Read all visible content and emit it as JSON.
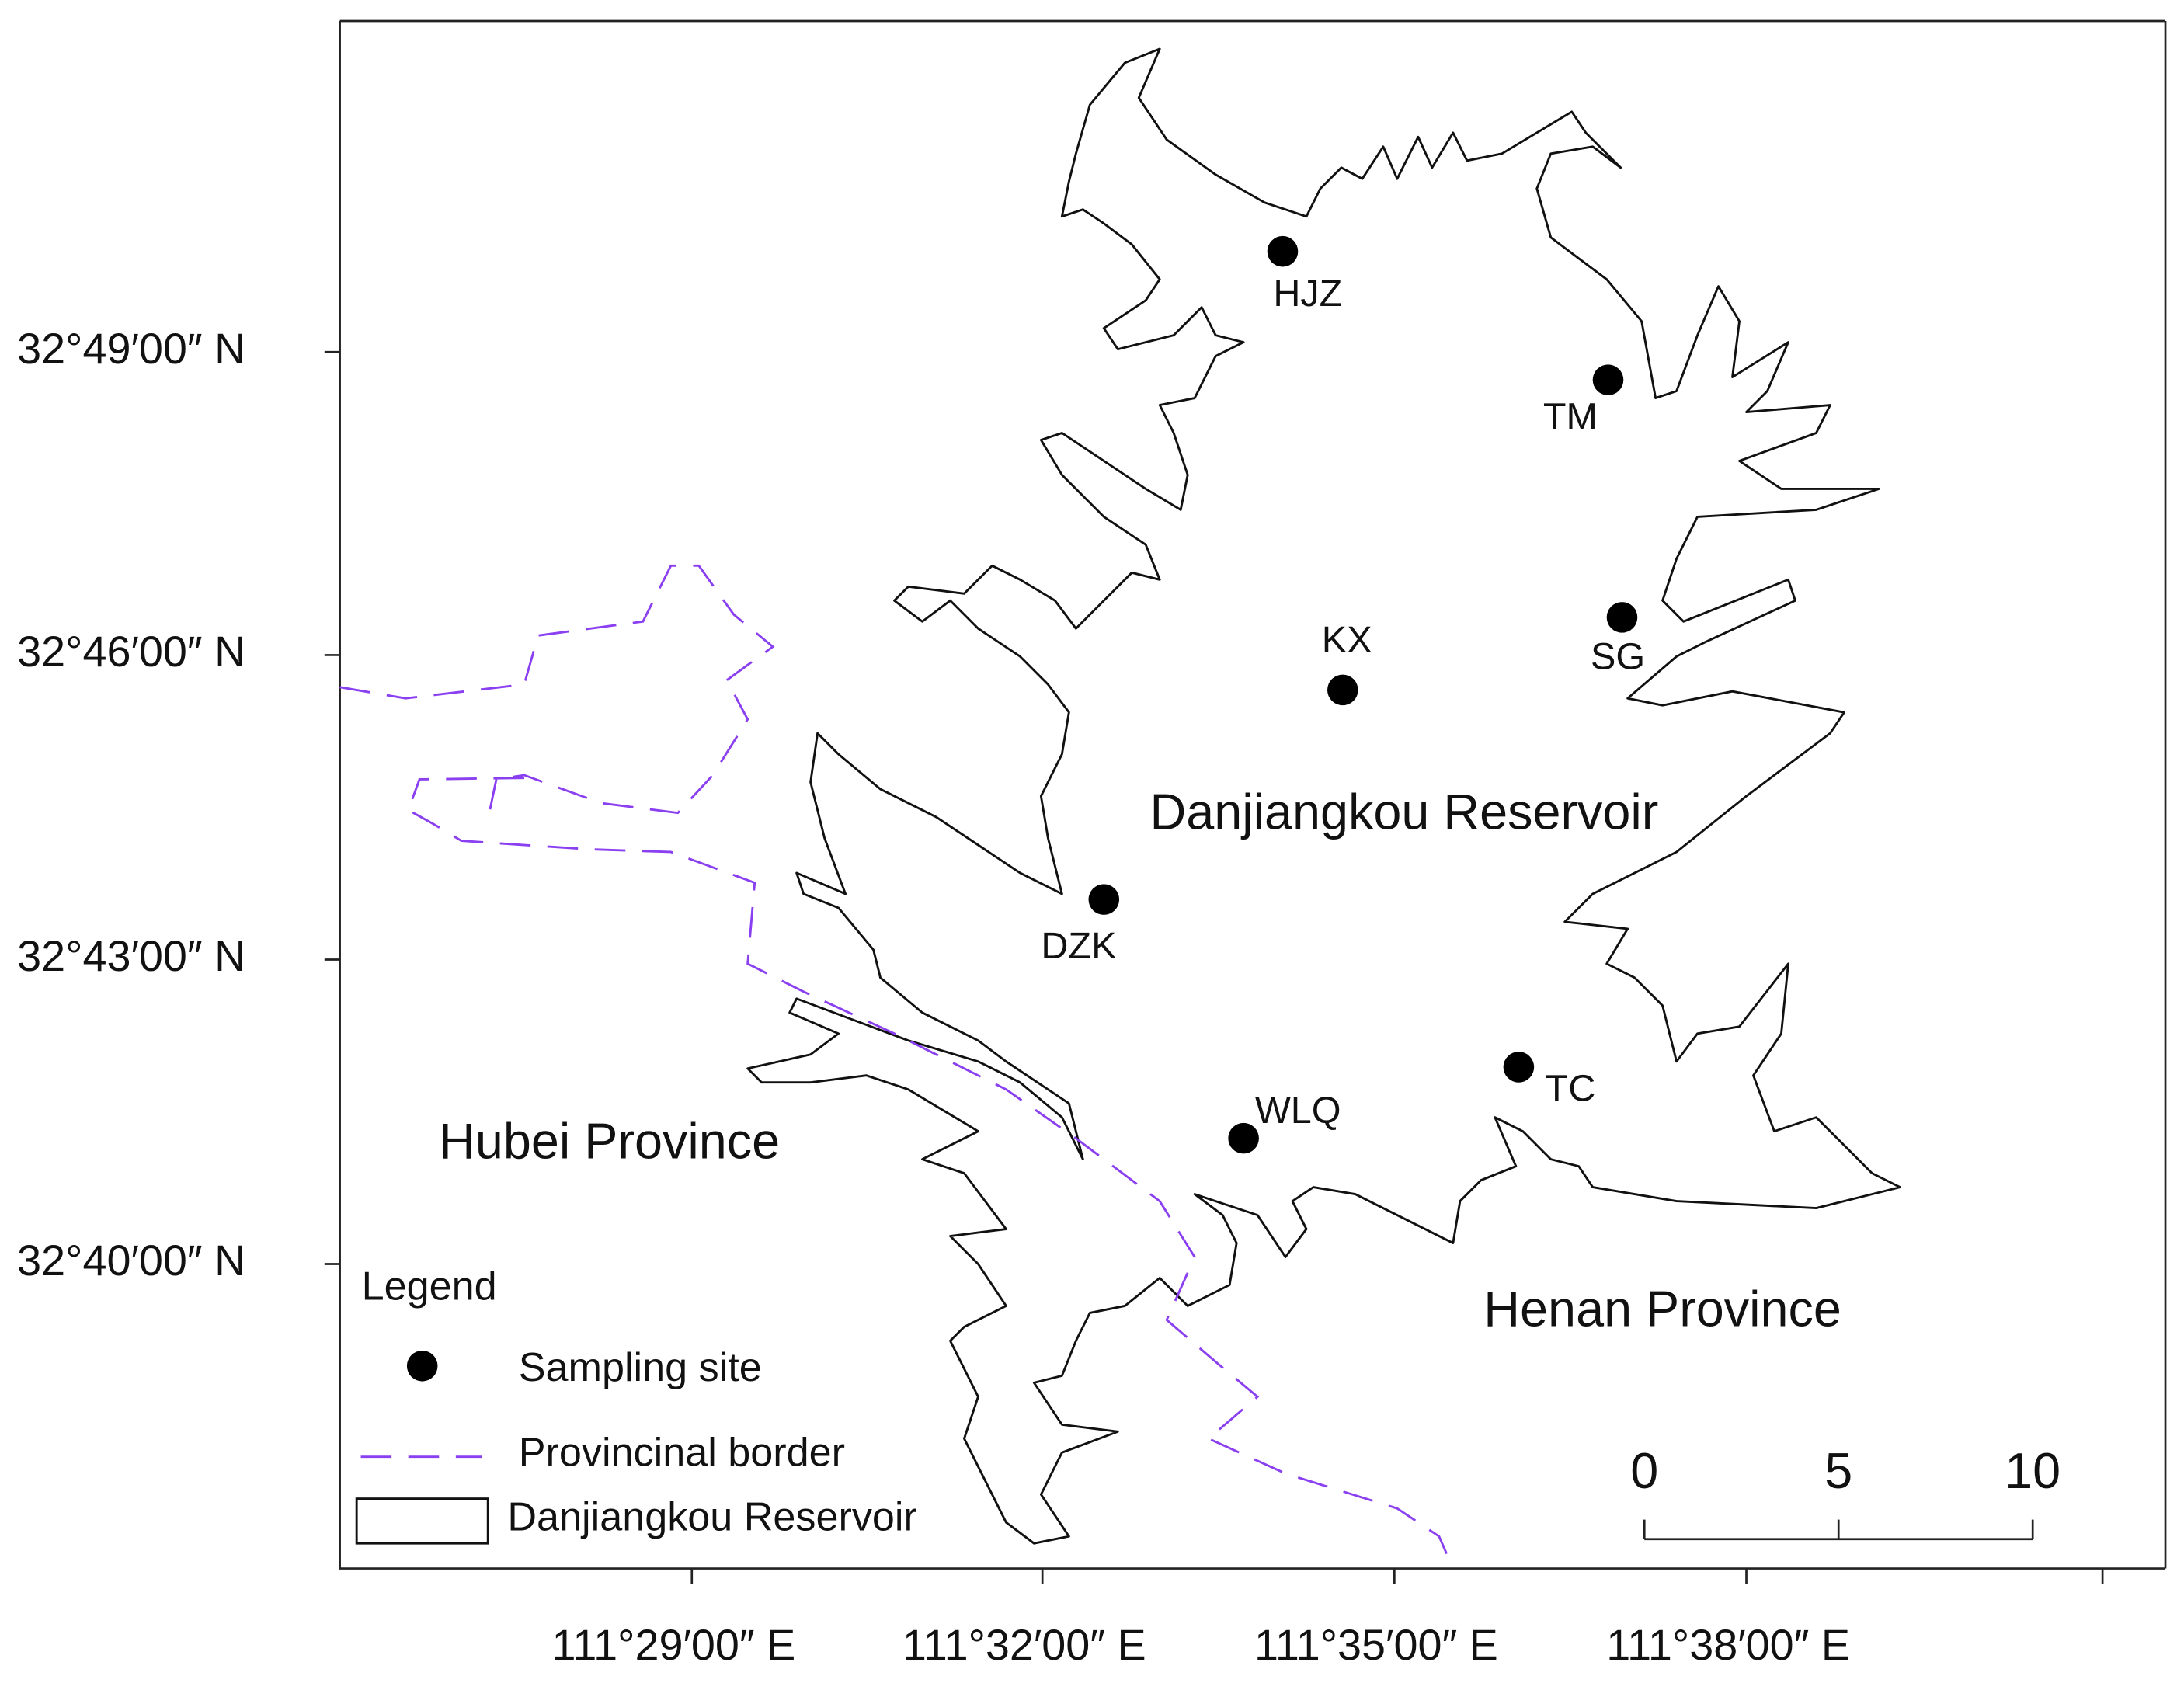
{
  "axes": {
    "y_labels": [
      "32°49′00″ N",
      "32°46′00″ N",
      "32°43′00″ N",
      "32°40′00″ N"
    ],
    "x_labels": [
      "111°29′00″ E",
      "111°32′00″ E",
      "111°35′00″ E",
      "111°38′00″ E"
    ]
  },
  "sites": [
    "HJZ",
    "TM",
    "SG",
    "KX",
    "DZK",
    "TC",
    "WLQ"
  ],
  "regions": [
    "Danjiangkou Reservoir",
    "Hubei Province",
    "Henan Province"
  ],
  "legend": {
    "title": "Legend",
    "items": [
      "Sampling site",
      "Provincinal border",
      "Danjiangkou Reservoir"
    ]
  },
  "scale_bar": {
    "ticks": [
      0,
      5,
      10
    ]
  }
}
